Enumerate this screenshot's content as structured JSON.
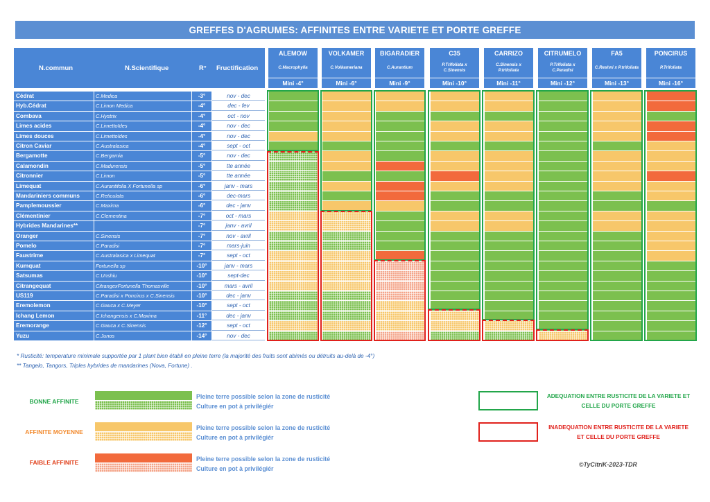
{
  "title": "GREFFES D'AGRUMES: AFFINITES ENTRE VARIETE ET PORTE GREFFE",
  "header": {
    "common": "N.commun",
    "scientific": "N.Scientifique",
    "r": "R°",
    "fructification": "Fructification"
  },
  "rootstocks": [
    {
      "name": "ALEMOW",
      "sci": "C.Macrophylla",
      "mini": "Mini -4°"
    },
    {
      "name": "VOLKAMER",
      "sci": "C.Volkameriana",
      "mini": "Mini -6°"
    },
    {
      "name": "BIGARADIER",
      "sci": "C.Aurantium",
      "mini": "Mini -9°"
    },
    {
      "name": "C35",
      "sci": "P.Trifoliata x\nC.Sinensis",
      "mini": "Mini -10°"
    },
    {
      "name": "CARRIZO",
      "sci": "C.Sinensis x\nP.trifoliata",
      "mini": "Mini -11°"
    },
    {
      "name": "CITRUMELO",
      "sci": "P.Trifoliata x\nC.Paradisi",
      "mini": "Mini -12°"
    },
    {
      "name": "FA5",
      "sci": "C.Reshni x P.trifoliata",
      "mini": "Mini -13°"
    },
    {
      "name": "PONCIRUS",
      "sci": "P.Trifoliata",
      "mini": "Mini -16°"
    }
  ],
  "rows": [
    {
      "name": "Cédrat",
      "sci": "C.Medica",
      "r": "-3°",
      "fruit": "nov - dec",
      "cells": [
        "G",
        "M",
        "M",
        "M",
        "M",
        "G",
        "M",
        "L"
      ]
    },
    {
      "name": "Hyb.Cédrat",
      "sci": "C.Limon Medica",
      "r": "-4°",
      "fruit": "dec - fev",
      "cells": [
        "G",
        "M",
        "M",
        "M",
        "M",
        "G",
        "M",
        "L"
      ]
    },
    {
      "name": "Combava",
      "sci": "C.Hystrix",
      "r": "-4°",
      "fruit": "oct - nov",
      "cells": [
        "G",
        "M",
        "G",
        "G",
        "G",
        "G",
        "M",
        "G"
      ]
    },
    {
      "name": "Limes acides",
      "sci": "C.Limettoïdes",
      "r": "-4°",
      "fruit": "nov - dec",
      "cells": [
        "G",
        "M",
        "G",
        "M",
        "M",
        "G",
        "M",
        "L"
      ]
    },
    {
      "name": "Limes douces",
      "sci": "C.Limettoïdes",
      "r": "-4°",
      "fruit": "nov - dec",
      "cells": [
        "M",
        "M",
        "G",
        "M",
        "M",
        "G",
        "M",
        "L"
      ]
    },
    {
      "name": "Citron Caviar",
      "sci": "C.Australasica",
      "r": "-4°",
      "fruit": "sept - oct",
      "cells": [
        "G",
        "G",
        "G",
        "G",
        "G",
        "G",
        "G",
        "M"
      ]
    },
    {
      "name": "Bergamotte",
      "sci": "C.Bergamia",
      "r": "-5°",
      "fruit": "nov - dec",
      "cells": [
        "pG",
        "M",
        "G",
        "M",
        "M",
        "G",
        "M",
        "M"
      ]
    },
    {
      "name": "Calamondin",
      "sci": "C.Madurensis",
      "r": "-5°",
      "fruit": "tte année",
      "cells": [
        "pG",
        "M",
        "L",
        "M",
        "M",
        "G",
        "M",
        "M"
      ]
    },
    {
      "name": "Citronnier",
      "sci": "C.Limon",
      "r": "-5°",
      "fruit": "tte année",
      "cells": [
        "pG",
        "G",
        "G",
        "L",
        "M",
        "G",
        "M",
        "L"
      ]
    },
    {
      "name": "Limequat",
      "sci": "C.Aurantifolia X Fortunella sp",
      "r": "-6°",
      "fruit": "janv - mars",
      "cells": [
        "pG",
        "M",
        "L",
        "M",
        "M",
        "G",
        "M",
        "M"
      ]
    },
    {
      "name": "Mandariniers communs",
      "sci": "C.Reticulata",
      "r": "-6°",
      "fruit": "dec-mars",
      "cells": [
        "pG",
        "G",
        "L",
        "G",
        "G",
        "G",
        "G",
        "M"
      ]
    },
    {
      "name": "Pamplemoussier",
      "sci": "C.Maxima",
      "r": "-6°",
      "fruit": "dec - janv",
      "cells": [
        "pG",
        "M",
        "M",
        "G",
        "G",
        "G",
        "G",
        "G"
      ]
    },
    {
      "name": "Clémentinier",
      "sci": "C.Clementina",
      "r": "-7°",
      "fruit": "oct - mars",
      "cells": [
        "pM",
        "pM",
        "G",
        "M",
        "M",
        "G",
        "M",
        "M"
      ]
    },
    {
      "name": "Hybrides Mandarines**",
      "sci": "",
      "r": "-7°",
      "fruit": "janv - avril",
      "cells": [
        "pM",
        "pM",
        "G",
        "M",
        "M",
        "G",
        "M",
        "M"
      ]
    },
    {
      "name": "Oranger",
      "sci": "C.Sinensis",
      "r": "-7°",
      "fruit": "nov - avril",
      "cells": [
        "pG",
        "pG",
        "G",
        "G",
        "G",
        "G",
        "G",
        "M"
      ]
    },
    {
      "name": "Pomelo",
      "sci": "C.Paradisi",
      "r": "-7°",
      "fruit": "mars-juin",
      "cells": [
        "pG",
        "pG",
        "G",
        "G",
        "G",
        "G",
        "G",
        "M"
      ]
    },
    {
      "name": "Faustrime",
      "sci": "C.Australasica x Limequat",
      "r": "-7°",
      "fruit": "sept - oct",
      "cells": [
        "pM",
        "pM",
        "L",
        "G",
        "G",
        "G",
        "G",
        "M"
      ]
    },
    {
      "name": "Kumquat",
      "sci": "Fortunella sp",
      "r": "-10°",
      "fruit": "janv - mars",
      "cells": [
        "pM",
        "pM",
        "pL",
        "G",
        "G",
        "G",
        "G",
        "G"
      ]
    },
    {
      "name": "Satsumas",
      "sci": "C.Unshiu",
      "r": "-10°",
      "fruit": "sept-dec",
      "cells": [
        "pM",
        "pM",
        "pL",
        "G",
        "G",
        "G",
        "G",
        "G"
      ]
    },
    {
      "name": "Citrangequat",
      "sci": "CitrangexFortunella Thomasville",
      "r": "-10°",
      "fruit": "mars - avril",
      "cells": [
        "pM",
        "pM",
        "pL",
        "G",
        "G",
        "G",
        "G",
        "G"
      ]
    },
    {
      "name": "US119",
      "sci": "C.Paradisi x Poncirus x C.Sinensis",
      "r": "-10°",
      "fruit": "dec - janv",
      "cells": [
        "pG",
        "pG",
        "pL",
        "G",
        "G",
        "G",
        "G",
        "G"
      ]
    },
    {
      "name": "Eremolemon",
      "sci": "C.Gauca x C.Meyer",
      "r": "-10°",
      "fruit": "sept - oct",
      "cells": [
        "pG",
        "pG",
        "pM",
        "G",
        "G",
        "G",
        "G",
        "G"
      ]
    },
    {
      "name": "Ichang Lemon",
      "sci": "C.Ichangensis x C.Maxima",
      "r": "-11°",
      "fruit": "dec - janv",
      "cells": [
        "pG",
        "pG",
        "pM",
        "pM",
        "G",
        "G",
        "G",
        "G"
      ]
    },
    {
      "name": "Eremorange",
      "sci": "C.Gauca x C.Sinensis",
      "r": "-12°",
      "fruit": "sept - oct",
      "cells": [
        "pM",
        "pM",
        "pM",
        "pM",
        "pM",
        "G",
        "G",
        "G"
      ]
    },
    {
      "name": "Yuzu",
      "sci": "C.Junos",
      "r": "-14°",
      "fruit": "nov - dec",
      "cells": [
        "pG",
        "pG",
        "pL",
        "pG",
        "pG",
        "pM",
        "G",
        "G"
      ]
    }
  ],
  "footnotes": {
    "note1": "* Rusticité: temperature minimale supportée par 1 plant bien établi en pleine terre (la majorité des fruits sont abimés ou détruits au-delà de -4°)",
    "note2": "** Tangelo, Tangors, Triples hybrides de mandarines (Nova, Fortune) ."
  },
  "legend": {
    "good": "BONNE AFFINITE",
    "mid": "AFFINITE MOYENNE",
    "low": "FAIBLE AFFINITE",
    "ground": "Pleine terre possible selon la zone de rusticité",
    "pot": "Culture en pot à privilégiér",
    "adequate_l1": "ADEQUATION ENTRE RUSTICITE DE LA VARIETE ET",
    "adequate_l2": "CELLE DU PORTE GREFFE",
    "inadequate_l1": "INADEQUATION ENTRE RUSTICITE DE LA VARIETE",
    "inadequate_l2": "ET CELLE DU PORTE GREFFE",
    "colors": {
      "good": "#7cc04f",
      "mid": "#f7c76a",
      "low": "#f26a3c",
      "green_border": "#22a64a",
      "red_border": "#e0201b"
    }
  },
  "copyright": "©TyCitriK-2023-TDR"
}
